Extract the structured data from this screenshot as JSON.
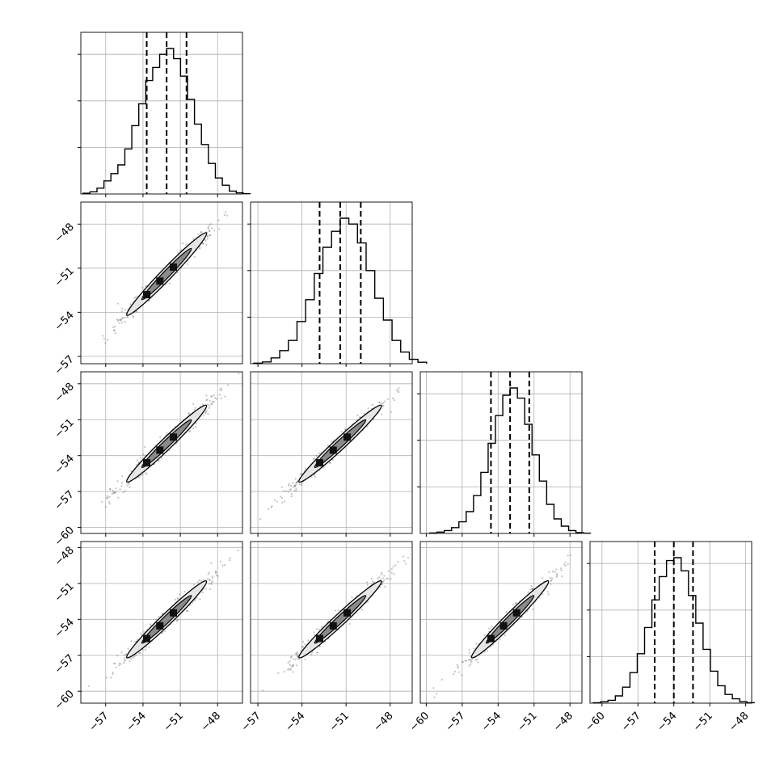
{
  "chart_data": {
    "type": "corner",
    "n_params": 4,
    "grid": true,
    "params": [
      {
        "range": [
          -59.0,
          -46.0
        ],
        "q16": -53.7,
        "q50": -52.1,
        "q84": -50.5
      },
      {
        "range": [
          -57.5,
          -46.5
        ],
        "q16": -52.8,
        "q50": -51.4,
        "q84": -50.0
      },
      {
        "range": [
          -60.5,
          -47.0
        ],
        "q16": -54.6,
        "q50": -53.0,
        "q84": -51.4
      },
      {
        "range": [
          -61.0,
          -47.5
        ],
        "q16": -55.6,
        "q50": -54.0,
        "q84": -52.4
      }
    ],
    "histograms": [
      {
        "counts": [
          0.005,
          0.015,
          0.04,
          0.09,
          0.14,
          0.2,
          0.31,
          0.47,
          0.62,
          0.78,
          0.87,
          0.96,
          1.0,
          0.93,
          0.81,
          0.65,
          0.48,
          0.34,
          0.21,
          0.11,
          0.06,
          0.02,
          0.008,
          0.002
        ]
      },
      {
        "counts": [
          0.004,
          0.012,
          0.04,
          0.09,
          0.16,
          0.29,
          0.44,
          0.62,
          0.8,
          0.91,
          1.0,
          0.96,
          0.83,
          0.64,
          0.45,
          0.3,
          0.16,
          0.08,
          0.03,
          0.01
        ]
      },
      {
        "counts": [
          0.003,
          0.009,
          0.02,
          0.04,
          0.08,
          0.15,
          0.26,
          0.42,
          0.62,
          0.81,
          0.95,
          1.0,
          0.93,
          0.75,
          0.54,
          0.36,
          0.2,
          0.1,
          0.05,
          0.02,
          0.006,
          0.002
        ]
      },
      {
        "counts": [
          0.003,
          0.01,
          0.02,
          0.05,
          0.11,
          0.21,
          0.34,
          0.52,
          0.71,
          0.87,
          0.98,
          1.0,
          0.91,
          0.74,
          0.55,
          0.37,
          0.22,
          0.12,
          0.06,
          0.03,
          0.01,
          0.003
        ]
      }
    ],
    "x_ticks": [
      [
        "−57",
        "−54",
        "−51",
        "−48"
      ],
      [
        "−57",
        "−54",
        "−51",
        "−48"
      ],
      [
        "−60",
        "−57",
        "−54",
        "−51",
        "−48"
      ],
      [
        "−60",
        "−57",
        "−54",
        "−51",
        "−48"
      ]
    ],
    "y_ticks": [
      null,
      [
        "−48",
        "−51",
        "−54",
        "−57"
      ],
      [
        "−48",
        "−51",
        "−54",
        "−57",
        "−60"
      ],
      [
        "−48",
        "−51",
        "−54",
        "−57",
        "−60"
      ]
    ],
    "colors": {
      "line": "#000000",
      "grid": "#b0b0b0",
      "points": "#555555",
      "fill_light": "#e6e6e6",
      "fill_mid": "#8a8a8a",
      "fill_dark": "#111111"
    }
  }
}
